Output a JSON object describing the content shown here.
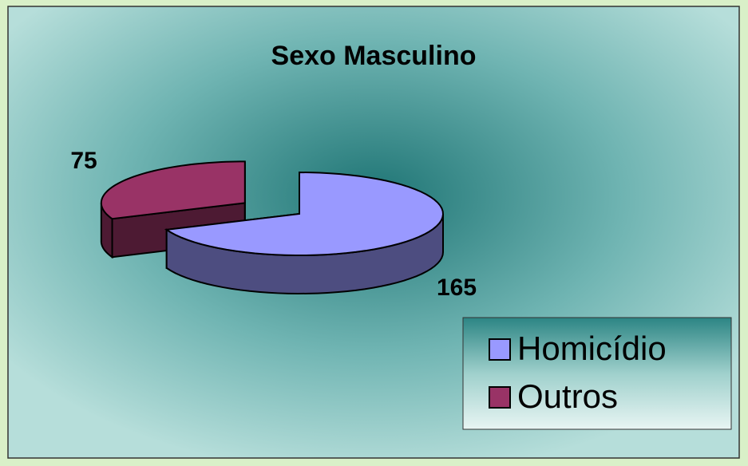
{
  "chart_data": {
    "type": "pie",
    "title": "Sexo Masculino",
    "categories": [
      "Homicídio",
      "Outros"
    ],
    "values": [
      165,
      75
    ],
    "colors": [
      "#9999ff",
      "#993366"
    ],
    "legend": "lower right"
  }
}
